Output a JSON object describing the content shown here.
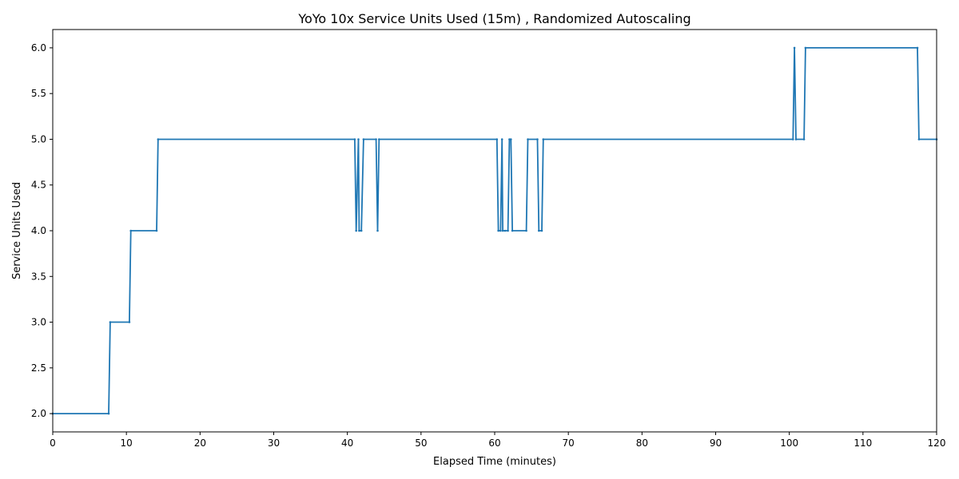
{
  "chart_data": {
    "type": "line",
    "title": "YoYo 10x Service Units Used (15m) , Randomized Autoscaling",
    "xlabel": "Elapsed Time (minutes)",
    "ylabel": "Service Units Used",
    "xlim": [
      0,
      120
    ],
    "ylim": [
      1.8,
      6.2
    ],
    "xticks": [
      0,
      10,
      20,
      30,
      40,
      50,
      60,
      70,
      80,
      90,
      100,
      110,
      120
    ],
    "yticks": [
      2.0,
      2.5,
      3.0,
      3.5,
      4.0,
      4.5,
      5.0,
      5.5,
      6.0
    ],
    "grid": false,
    "legend": "none",
    "colors": {
      "line": "#1f77b4"
    },
    "series": [
      {
        "x": [
          0,
          7.6,
          7.8,
          10.4,
          10.6,
          14.1,
          14.3,
          41.0,
          41.2,
          41.5,
          41.6,
          41.9,
          42.2,
          43.9,
          44.1,
          44.3,
          60.3,
          60.5,
          60.8,
          61.0,
          61.1,
          61.4,
          61.8,
          62.0,
          62.2,
          62.4,
          64.3,
          64.5,
          65.8,
          66.0,
          66.4,
          66.6,
          100.5,
          100.7,
          100.9,
          102.0,
          102.2,
          117.4,
          117.6,
          120.0
        ],
        "y": [
          2,
          2,
          3,
          3,
          4,
          4,
          5,
          5,
          4,
          5,
          4,
          4,
          5,
          5,
          4,
          5,
          5,
          4,
          4,
          5,
          4,
          4,
          4,
          5,
          5,
          4,
          4,
          5,
          5,
          4,
          4,
          5,
          5,
          6,
          5,
          5,
          6,
          6,
          5,
          5
        ]
      }
    ]
  }
}
